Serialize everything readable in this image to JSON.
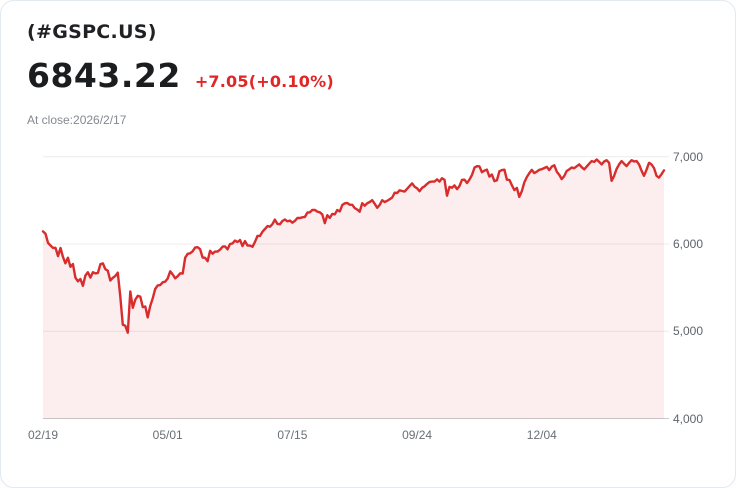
{
  "header": {
    "symbol": "(#GSPC.US)",
    "price": "6843.22",
    "change": "+7.05(+0.10%)",
    "as_of": "At close:2026/2/17"
  },
  "colors": {
    "line_red": "#d92c2c",
    "change_red": "#e12626",
    "area_fill": "rgba(217,44,44,0.08)",
    "grid": "#ececec",
    "axis_line": "#cbcbcb",
    "tick_text": "#5f646a",
    "title_text": "#1f2124",
    "muted_text": "#85898e"
  },
  "chart_data": {
    "type": "area",
    "title": "",
    "series_name": "#GSPC.US close",
    "ylim": [
      4000,
      7000
    ],
    "grid": true,
    "legend": false,
    "y_ticks": [
      {
        "label": "7,000",
        "v": 7000
      },
      {
        "label": "6,000",
        "v": 6000
      },
      {
        "label": "5,000",
        "v": 5000
      },
      {
        "label": "4,000",
        "v": 4000
      }
    ],
    "x_ticks": [
      {
        "label": "02/19",
        "i": 0
      },
      {
        "label": "05/01",
        "i": 50
      },
      {
        "label": "07/15",
        "i": 100
      },
      {
        "label": "09/24",
        "i": 150
      },
      {
        "label": "12/04",
        "i": 200
      }
    ],
    "values": [
      6144,
      6118,
      6013,
      5983,
      5955,
      5956,
      5861,
      5954,
      5850,
      5778,
      5843,
      5738,
      5770,
      5615,
      5572,
      5599,
      5521,
      5639,
      5675,
      5615,
      5676,
      5663,
      5668,
      5768,
      5777,
      5712,
      5693,
      5581,
      5612,
      5633,
      5671,
      5396,
      5074,
      5062,
      4983,
      5457,
      5268,
      5363,
      5406,
      5397,
      5276,
      5283,
      5158,
      5288,
      5376,
      5485,
      5525,
      5529,
      5561,
      5569,
      5604,
      5687,
      5650,
      5607,
      5631,
      5664,
      5660,
      5844,
      5887,
      5893,
      5916,
      5958,
      5963,
      5940,
      5845,
      5842,
      5803,
      5922,
      5888,
      5912,
      5912,
      5936,
      5970,
      5971,
      5939,
      6000,
      6006,
      6039,
      6022,
      6045,
      5977,
      6033,
      5983,
      5981,
      5968,
      6025,
      6092,
      6092,
      6141,
      6173,
      6205,
      6198,
      6227,
      6279,
      6230,
      6226,
      6263,
      6280,
      6260,
      6268,
      6244,
      6264,
      6297,
      6297,
      6306,
      6310,
      6359,
      6363,
      6389,
      6390,
      6371,
      6363,
      6339,
      6238,
      6330,
      6299,
      6345,
      6340,
      6389,
      6373,
      6446,
      6466,
      6469,
      6450,
      6449,
      6411,
      6395,
      6370,
      6467,
      6439,
      6466,
      6481,
      6502,
      6460,
      6415,
      6448,
      6502,
      6481,
      6495,
      6513,
      6532,
      6587,
      6584,
      6615,
      6607,
      6600,
      6632,
      6664,
      6694,
      6656,
      6638,
      6605,
      6644,
      6661,
      6688,
      6711,
      6715,
      6716,
      6740,
      6715,
      6754,
      6735,
      6553,
      6654,
      6645,
      6671,
      6629,
      6664,
      6735,
      6736,
      6699,
      6738,
      6792,
      6875,
      6891,
      6890,
      6822,
      6840,
      6852,
      6772,
      6796,
      6720,
      6729,
      6833,
      6847,
      6851,
      6737,
      6734,
      6672,
      6617,
      6642,
      6539,
      6603,
      6705,
      6766,
      6812,
      6849,
      6812,
      6829,
      6850,
      6857,
      6870,
      6883,
      6847,
      6886,
      6901,
      6828,
      6791,
      6743,
      6778,
      6836,
      6855,
      6876,
      6868,
      6890,
      6912,
      6880,
      6855,
      6886,
      6920,
      6950,
      6940,
      6968,
      6940,
      6912,
      6945,
      6960,
      6930,
      6724,
      6780,
      6860,
      6912,
      6950,
      6920,
      6892,
      6930,
      6960,
      6945,
      6950,
      6910,
      6838,
      6781,
      6850,
      6930,
      6912,
      6870,
      6781,
      6760,
      6800,
      6843.22
    ]
  }
}
